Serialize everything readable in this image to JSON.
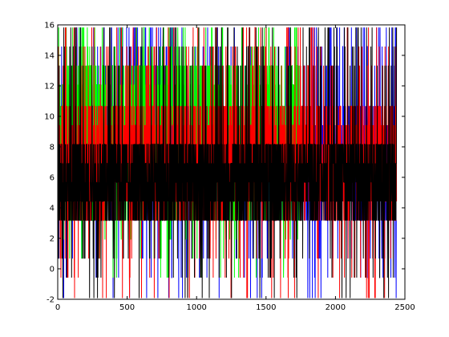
{
  "chart_data": {
    "type": "line",
    "xlim": [
      0,
      2500
    ],
    "ylim": [
      -2,
      16
    ],
    "x_ticks": [
      "0",
      "500",
      "1000",
      "1500",
      "2000",
      "2500"
    ],
    "y_ticks": [
      "-2",
      "0",
      "2",
      "4",
      "6",
      "8",
      "10",
      "12",
      "14",
      "16"
    ],
    "grid": false,
    "legend": "none",
    "levels": [
      -1.92,
      -0.58,
      0.67,
      1.92,
      3.17,
      4.42,
      5.67,
      6.92,
      8.17,
      9.42,
      10.67,
      12.08,
      13.33,
      14.58,
      15.83
    ],
    "series": [
      {
        "color": "#0000ff",
        "n_points": 2440,
        "x_range": [
          0,
          2440
        ],
        "typical_range": [
          3.17,
          10.67
        ],
        "min": -1.92,
        "max": 15.83
      },
      {
        "color": "#00ff00",
        "n_points": 1740,
        "x_range": [
          0,
          1740
        ],
        "typical_range": [
          3.17,
          13.33
        ],
        "min": -0.58,
        "max": 15.83
      },
      {
        "color": "#ff0000",
        "n_points": 2440,
        "x_range": [
          0,
          2440
        ],
        "typical_range": [
          3.17,
          10.67
        ],
        "min": -1.92,
        "max": 15.83
      },
      {
        "color": "#000000",
        "n_points": 2440,
        "x_range": [
          0,
          2440
        ],
        "typical_range": [
          3.17,
          8.17
        ],
        "min": -1.92,
        "max": 15.83
      }
    ]
  }
}
